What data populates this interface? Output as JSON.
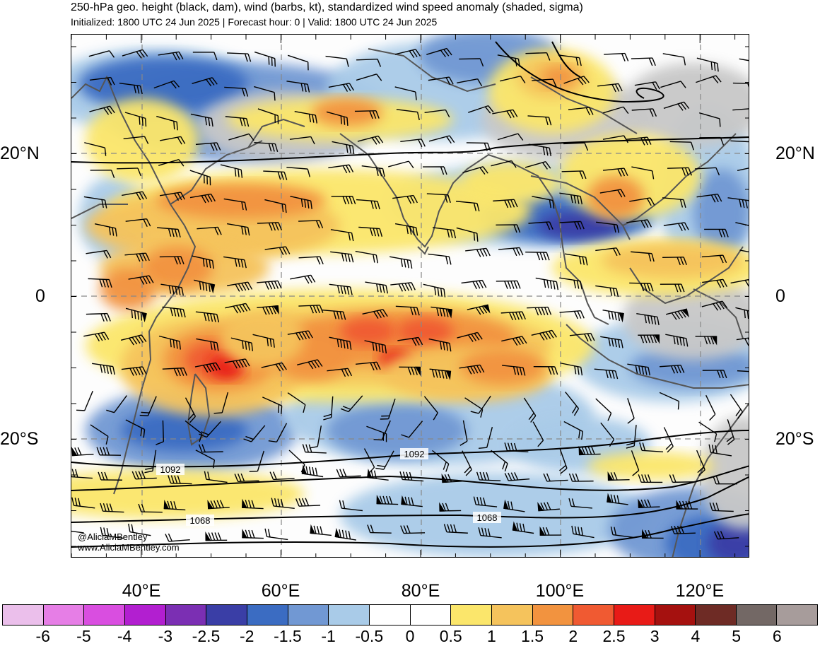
{
  "header": {
    "title": "250-hPa geo. height (black, dam), wind (barbs, kt), standardized wind speed anomaly (shaded, sigma)",
    "subtitle": "Initialized: 1800 UTC 24 Jun 2025 | Forecast hour: 0 | Valid: 1800 UTC 24 Jun 2025"
  },
  "map": {
    "lat_labels": [
      "20°N",
      "0",
      "20°S"
    ],
    "lon_labels": [
      "40°E",
      "60°E",
      "80°E",
      "100°E",
      "120°E"
    ],
    "contour_labels": [
      "1092",
      "1092",
      "1068",
      "1068"
    ],
    "credit_handle": "@AliciaMBentley",
    "credit_url": "www.AliciaMBentley.com"
  },
  "colorbar": {
    "colors": [
      "#ebbfeb",
      "#e67ee6",
      "#d94ee0",
      "#b21fd0",
      "#7b2fb3",
      "#3a3ea6",
      "#3b6cc2",
      "#7198d3",
      "#a9cbe8",
      "#ffffff",
      "#ffffff",
      "#fbe66b",
      "#f5c35c",
      "#f2933f",
      "#f05a32",
      "#e81b17",
      "#a5110f",
      "#6e2b25",
      "#736865",
      "#a79c9b"
    ],
    "labels": [
      "-6",
      "-5",
      "-4",
      "-3",
      "-2.5",
      "-2",
      "-1.5",
      "-1",
      "-0.5",
      "0",
      "0.5",
      "1",
      "1.5",
      "2",
      "2.5",
      "3",
      "4",
      "5",
      "6"
    ]
  }
}
